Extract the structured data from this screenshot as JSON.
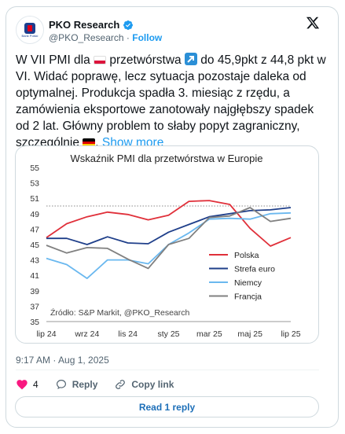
{
  "author": {
    "name": "PKO Research",
    "handle": "@PKO_Research",
    "separator": "·",
    "follow_label": "Follow",
    "avatar_text": "Bank Polski"
  },
  "tweet": {
    "part1": "W VII PMI dla ",
    "part2": " przetwórstwa ",
    "part3": " do 45,9pkt z 44,8 pkt w VI. Widać poprawę, lecz sytuacja pozostaje daleka od optymalnej. Produkcja spadła 3. miesiąc z rzędu, a zamówienia eksportowe zanotowały najgłębszy spadek od 2 lat. Główny problem to słaby popyt zagraniczny, szczególnie ",
    "part4": ". ",
    "show_more": "Show more"
  },
  "meta": {
    "timestamp": "9:17 AM · Aug 1, 2025"
  },
  "actions": {
    "likes": "4",
    "reply": "Reply",
    "copy_link": "Copy link"
  },
  "read_replies": "Read 1 reply",
  "colors": {
    "accent": "#1d9bf0",
    "poland": "#e0303a",
    "eurozone": "#1f3f8a",
    "germany": "#6ab8ef",
    "france": "#808080",
    "heart": "#f91880"
  },
  "icons": [
    "verified-badge-icon",
    "x-logo-icon",
    "heart-icon",
    "reply-icon",
    "link-icon",
    "arrow-up-right-icon"
  ],
  "chart_data": {
    "type": "line",
    "title": "Wskaźnik PMI dla przetwórstwa w Europie",
    "source": "Źródło: S&P Markit, @PKO_Research",
    "x": [
      "lip 24",
      "sie 24",
      "wrz 24",
      "paź 24",
      "lis 24",
      "gru 24",
      "sty 25",
      "lut 25",
      "mar 25",
      "kwi 25",
      "maj 25",
      "cze 25",
      "lip 25"
    ],
    "xtick_labels": [
      "lip 24",
      "wrz 24",
      "lis 24",
      "sty 25",
      "mar 25",
      "maj 25",
      "lip 25"
    ],
    "yticks": [
      35,
      37,
      39,
      41,
      43,
      45,
      47,
      49,
      51,
      53,
      55
    ],
    "ylim": [
      35,
      55
    ],
    "reference_line": 50,
    "legend_position": "bottom-right",
    "series": [
      {
        "name": "Polska",
        "color": "#e0303a",
        "values": [
          45.9,
          47.7,
          48.6,
          49.2,
          48.9,
          48.2,
          48.8,
          50.6,
          50.7,
          50.2,
          47.1,
          44.8,
          45.9
        ]
      },
      {
        "name": "Strefa euro",
        "color": "#1f3f8a",
        "values": [
          45.8,
          45.8,
          45.0,
          46.0,
          45.2,
          45.1,
          46.6,
          47.6,
          48.6,
          49.0,
          49.4,
          49.5,
          49.8
        ]
      },
      {
        "name": "Niemcy",
        "color": "#6ab8ef",
        "values": [
          43.2,
          42.4,
          40.6,
          43.0,
          43.0,
          42.5,
          45.0,
          46.5,
          48.3,
          48.4,
          48.3,
          49.0,
          49.1
        ]
      },
      {
        "name": "Francja",
        "color": "#808080",
        "values": [
          44.9,
          43.9,
          44.6,
          44.5,
          43.1,
          41.9,
          45.0,
          45.8,
          48.5,
          48.7,
          49.8,
          48.0,
          48.4
        ]
      }
    ]
  }
}
